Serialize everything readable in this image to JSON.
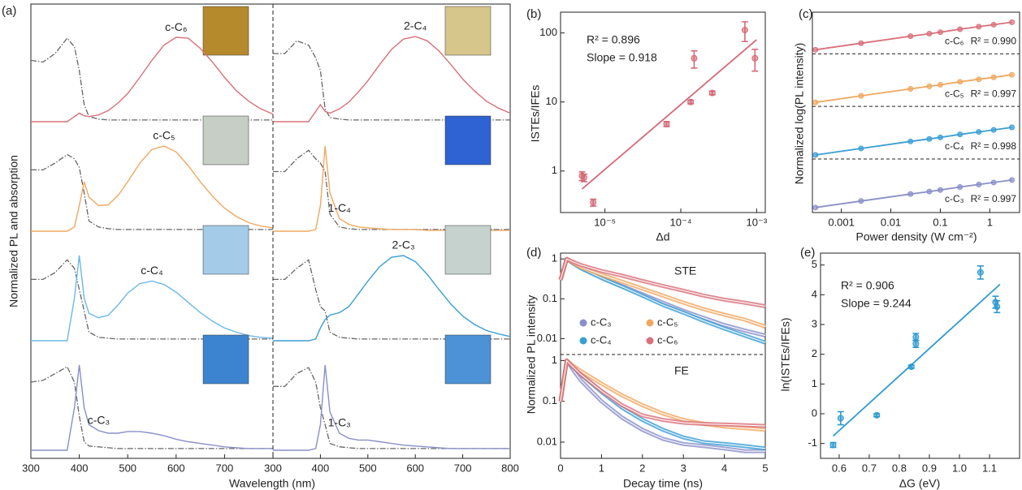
{
  "chart_data": [
    {
      "type": "spectra",
      "panel": "(a)",
      "ylabel": "Normalized PL and absorption",
      "xlabel": "Wavelength (nm)",
      "x": [
        300,
        325,
        350,
        375,
        390,
        400,
        410,
        420,
        440,
        460,
        480,
        500,
        525,
        550,
        575,
        600,
        625,
        650,
        675,
        700,
        725,
        750,
        775,
        800
      ],
      "columns": [
        {
          "xlim": [
            300,
            800
          ],
          "xticks": [
            300,
            400,
            500,
            600,
            700
          ],
          "series": [
            {
              "name": "c-C₆",
              "color": "#d9707a",
              "values": [
                0,
                0,
                0,
                0,
                0.06,
                0.1,
                0.07,
                0.06,
                0.08,
                0.13,
                0.22,
                0.33,
                0.52,
                0.72,
                0.9,
                0.99,
                0.98,
                0.86,
                0.7,
                0.52,
                0.36,
                0.24,
                0.15,
                0.09
              ],
              "absorption": [
                0.72,
                0.7,
                0.8,
                0.98,
                0.88,
                0.6,
                0.2,
                0.06,
                0.03,
                0.02,
                0.02,
                0.02,
                0.02,
                0.02,
                0.02,
                0.02,
                0.02,
                0.02,
                0.02,
                0.02,
                0.02,
                0.02,
                0.02,
                0.02
              ]
            },
            {
              "name": "c-C₅",
              "color": "#f0a860",
              "values": [
                0,
                0,
                0,
                0,
                0.05,
                0.3,
                0.58,
                0.4,
                0.3,
                0.31,
                0.42,
                0.58,
                0.8,
                0.96,
                1,
                0.93,
                0.77,
                0.58,
                0.41,
                0.27,
                0.17,
                0.1,
                0.06,
                0.04
              ],
              "absorption": [
                0.72,
                0.72,
                0.8,
                0.9,
                0.85,
                0.75,
                0.45,
                0.12,
                0.05,
                0.03,
                0.02,
                0.02,
                0.02,
                0.02,
                0.02,
                0.02,
                0.02,
                0.02,
                0.02,
                0.02,
                0.02,
                0.02,
                0.02,
                0.02
              ]
            },
            {
              "name": "c-C₄",
              "color": "#6cb8e6",
              "values": [
                0,
                0,
                0,
                0,
                0.5,
                1,
                0.5,
                0.32,
                0.27,
                0.3,
                0.42,
                0.56,
                0.67,
                0.7,
                0.66,
                0.57,
                0.45,
                0.33,
                0.23,
                0.15,
                0.1,
                0.06,
                0.04,
                0.03
              ],
              "absorption": [
                0.72,
                0.72,
                0.8,
                0.95,
                0.85,
                0.6,
                0.35,
                0.1,
                0.04,
                0.03,
                0.02,
                0.02,
                0.02,
                0.02,
                0.02,
                0.02,
                0.02,
                0.02,
                0.02,
                0.02,
                0.02,
                0.02,
                0.02,
                0.02
              ]
            },
            {
              "name": "c-C₃",
              "color": "#8a8fc8",
              "values": [
                0,
                0,
                0,
                0,
                0.5,
                1,
                0.5,
                0.3,
                0.23,
                0.2,
                0.2,
                0.22,
                0.22,
                0.2,
                0.17,
                0.13,
                0.1,
                0.08,
                0.06,
                0.04,
                0.03,
                0.02,
                0.02,
                0.02
              ],
              "absorption": [
                0.8,
                0.82,
                0.9,
                0.98,
                0.8,
                0.4,
                0.1,
                0.05,
                0.04,
                0.03,
                0.02,
                0.02,
                0.02,
                0.02,
                0.02,
                0.02,
                0.02,
                0.02,
                0.02,
                0.02,
                0.02,
                0.02,
                0.02,
                0.02
              ]
            }
          ]
        },
        {
          "xlim": [
            300,
            800
          ],
          "xticks": [
            300,
            400,
            500,
            600,
            700,
            800
          ],
          "series": [
            {
              "name": "2-C₄",
              "color": "#d9707a",
              "values": [
                0,
                0,
                0,
                0,
                0.12,
                0.2,
                0.12,
                0.1,
                0.15,
                0.23,
                0.35,
                0.48,
                0.67,
                0.85,
                0.97,
                1,
                0.95,
                0.83,
                0.67,
                0.5,
                0.36,
                0.24,
                0.16,
                0.1
              ],
              "absorption": [
                0.8,
                0.8,
                0.95,
                0.9,
                0.75,
                0.6,
                0.15,
                0.05,
                0.03,
                0.02,
                0.02,
                0.02,
                0.02,
                0.02,
                0.02,
                0.02,
                0.02,
                0.02,
                0.02,
                0.02,
                0.02,
                0.02,
                0.02,
                0.02
              ]
            },
            {
              "name": "1-C₄",
              "color": "#f0a860",
              "values": [
                0,
                0,
                0,
                0,
                0.02,
                0.3,
                1,
                0.45,
                0.15,
                0.08,
                0.05,
                0.04,
                0.03,
                0.02,
                0.02,
                0.02,
                0.01,
                0.01,
                0.01,
                0.01,
                0.01,
                0.01,
                0.01,
                0.01
              ],
              "absorption": [
                0.7,
                0.7,
                0.85,
                0.95,
                0.85,
                0.8,
                0.7,
                0.2,
                0.05,
                0.03,
                0.02,
                0.02,
                0.02,
                0.02,
                0.02,
                0.02,
                0.02,
                0.02,
                0.02,
                0.02,
                0.02,
                0.02,
                0.02,
                0.02
              ]
            },
            {
              "name": "2-C₃",
              "color": "#3a9ed4",
              "values": [
                0,
                0,
                0,
                0,
                0.02,
                0.15,
                0.25,
                0.3,
                0.33,
                0.4,
                0.55,
                0.7,
                0.87,
                0.98,
                1,
                0.93,
                0.78,
                0.6,
                0.43,
                0.29,
                0.19,
                0.12,
                0.08,
                0.05
              ],
              "absorption": [
                0.72,
                0.72,
                0.85,
                0.95,
                0.6,
                0.4,
                0.35,
                0.1,
                0.04,
                0.03,
                0.02,
                0.02,
                0.02,
                0.02,
                0.02,
                0.02,
                0.02,
                0.02,
                0.02,
                0.02,
                0.02,
                0.02,
                0.02,
                0.02
              ]
            },
            {
              "name": "1-C₃",
              "color": "#8a8fc8",
              "values": [
                0,
                0,
                0,
                0,
                0.02,
                0.3,
                1,
                0.45,
                0.2,
                0.14,
                0.12,
                0.12,
                0.1,
                0.08,
                0.06,
                0.05,
                0.04,
                0.03,
                0.02,
                0.02,
                0.02,
                0.02,
                0.02,
                0.02
              ],
              "absorption": [
                0.75,
                0.75,
                0.9,
                0.97,
                0.8,
                0.5,
                0.3,
                0.08,
                0.04,
                0.03,
                0.02,
                0.02,
                0.02,
                0.02,
                0.02,
                0.02,
                0.02,
                0.02,
                0.02,
                0.02,
                0.02,
                0.02,
                0.02,
                0.02
              ]
            }
          ]
        }
      ]
    },
    {
      "type": "scatter",
      "panel": "(b)",
      "xlabel": "Δd",
      "ylabel": "ISTEs/IFEs",
      "xlog": true,
      "ylog": true,
      "xlim": [
        2.6e-06,
        0.0013
      ],
      "ylim": [
        0.25,
        200
      ],
      "xticks": [
        {
          "value": 1e-05,
          "label": "10⁻⁵"
        },
        {
          "value": 0.0001,
          "label": "10⁻⁴"
        },
        {
          "value": 0.001,
          "label": "10⁻³"
        }
      ],
      "yticks": [
        1,
        10,
        100
      ],
      "color": "#d46a76",
      "x": [
        5e-06,
        5.3e-06,
        7e-06,
        6.5e-05,
        0.000135,
        0.00015,
        0.00026,
        0.0007,
        0.00095
      ],
      "values": [
        0.85,
        0.8,
        0.35,
        4.8,
        10,
        43,
        13.5,
        110,
        43
      ],
      "errors": [
        0.12,
        0.1,
        0.04,
        0.4,
        0.6,
        12,
        0.8,
        35,
        15
      ],
      "fit": {
        "x": [
          5e-06,
          0.001
        ],
        "values": [
          0.55,
          80
        ]
      },
      "annotations": [
        "R² = 0.896",
        "Slope = 0.918"
      ]
    },
    {
      "type": "line",
      "panel": "(c)",
      "xlabel": "Power density (W cm⁻²)",
      "ylabel": "Normalized log(PL intensity)",
      "xlog": true,
      "xlim": [
        0.00026,
        4
      ],
      "ylim": [
        -0.05,
        3.95
      ],
      "xticks": [
        0.001,
        0.01,
        0.1,
        1
      ],
      "x": [
        0.0003,
        0.0025,
        0.025,
        0.06,
        0.1,
        0.25,
        0.6,
        1.2,
        2.8
      ],
      "series": [
        {
          "name": "c-C₃",
          "annotation": "R² = 0.997",
          "color": "#8a8fc8",
          "values": [
            0.05,
            0.18,
            0.32,
            0.37,
            0.4,
            0.46,
            0.51,
            0.55,
            0.6
          ]
        },
        {
          "name": "c-C₄",
          "annotation": "R² = 0.998",
          "color": "#3a9ed4",
          "values": [
            1.1,
            1.23,
            1.37,
            1.42,
            1.45,
            1.51,
            1.56,
            1.6,
            1.65
          ]
        },
        {
          "name": "c-C₅",
          "annotation": "R² = 0.997",
          "color": "#f0a860",
          "values": [
            2.15,
            2.28,
            2.42,
            2.47,
            2.5,
            2.56,
            2.61,
            2.65,
            2.7
          ]
        },
        {
          "name": "c-C₆",
          "annotation": "R² = 0.990",
          "color": "#d9707a",
          "values": [
            3.2,
            3.33,
            3.47,
            3.52,
            3.55,
            3.61,
            3.66,
            3.7,
            3.75
          ]
        }
      ]
    },
    {
      "type": "decay",
      "panel": "(d)",
      "xlabel": "Decay time (ns)",
      "ylabel": "Normalized PL intensity",
      "ylog": true,
      "xlim": [
        0,
        5
      ],
      "xticks": [
        0,
        1,
        2,
        3,
        4,
        5
      ],
      "x": [
        0,
        0.15,
        0.3,
        0.5,
        1,
        1.5,
        2,
        2.5,
        3,
        3.5,
        4,
        4.5,
        5
      ],
      "panels": [
        {
          "label": "STE",
          "ylim": [
            0.004,
            1.4
          ],
          "yticks": [
            0.01,
            0.1,
            1
          ],
          "series": [
            {
              "name": "c-C₃",
              "color": "#8a8fc8",
              "values": [
                0.3,
                1,
                0.78,
                0.6,
                0.35,
                0.21,
                0.13,
                0.08,
                0.05,
                0.033,
                0.022,
                0.016,
                0.012
              ]
            },
            {
              "name": "c-C₄",
              "color": "#3a9ed4",
              "values": [
                0.3,
                1,
                0.78,
                0.58,
                0.33,
                0.2,
                0.12,
                0.07,
                0.045,
                0.028,
                0.018,
                0.012,
                0.008
              ]
            },
            {
              "name": "c-C₅",
              "color": "#f0a860",
              "values": [
                0.3,
                1,
                0.8,
                0.62,
                0.4,
                0.27,
                0.18,
                0.12,
                0.08,
                0.055,
                0.04,
                0.03,
                0.02
              ]
            },
            {
              "name": "c-C₆",
              "color": "#d9707a",
              "values": [
                0.3,
                1,
                0.85,
                0.7,
                0.5,
                0.38,
                0.28,
                0.21,
                0.16,
                0.12,
                0.095,
                0.08,
                0.065
              ]
            }
          ]
        },
        {
          "label": "FE",
          "ylim": [
            0.004,
            1.4
          ],
          "yticks": [
            0.01,
            0.1,
            1
          ],
          "series": [
            {
              "color": "#8a8fc8",
              "values": [
                0.1,
                1,
                0.6,
                0.32,
                0.1,
                0.04,
                0.02,
                0.012,
                0.009,
                0.008,
                0.007,
                0.006,
                0.006
              ]
            },
            {
              "color": "#3a9ed4",
              "values": [
                0.1,
                1,
                0.7,
                0.45,
                0.17,
                0.07,
                0.035,
                0.02,
                0.013,
                0.01,
                0.009,
                0.008,
                0.007
              ]
            },
            {
              "color": "#f0a860",
              "values": [
                0.1,
                1,
                0.75,
                0.55,
                0.27,
                0.14,
                0.08,
                0.05,
                0.035,
                0.028,
                0.024,
                0.022,
                0.02
              ]
            },
            {
              "color": "#d9707a",
              "values": [
                0.1,
                1,
                0.7,
                0.45,
                0.18,
                0.08,
                0.045,
                0.035,
                0.03,
                0.028,
                0.027,
                0.026,
                0.025
              ]
            }
          ]
        }
      ]
    },
    {
      "type": "scatter",
      "panel": "(e)",
      "xlabel": "ΔG (eV)",
      "ylabel": "ln(ISTEs/IFEs)",
      "xlim": [
        0.538,
        1.2
      ],
      "ylim": [
        -1.5,
        5.4
      ],
      "xticks": [
        0.6,
        0.7,
        0.8,
        0.9,
        {
          "value": 1,
          "label": "1.0"
        },
        1.1
      ],
      "yticks": [
        -1,
        0,
        1,
        2,
        3,
        4,
        5
      ],
      "color": "#2f9bd0",
      "x": [
        0.58,
        0.605,
        0.725,
        0.84,
        0.855,
        0.855,
        1.07,
        1.12,
        1.125
      ],
      "values": [
        -1.05,
        -0.15,
        -0.05,
        1.58,
        2.58,
        2.35,
        4.75,
        3.75,
        3.6
      ],
      "errors": [
        0.08,
        0.22,
        0.05,
        0.05,
        0.12,
        0.12,
        0.22,
        0.2,
        0.2
      ],
      "fit": {
        "x": [
          0.58,
          1.135
        ],
        "values": [
          -0.75,
          4.35
        ]
      },
      "annotations": [
        "R² = 0.906",
        "Slope = 9.244"
      ]
    }
  ]
}
